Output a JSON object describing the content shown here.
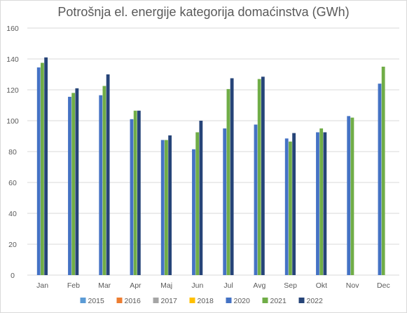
{
  "chart_data": {
    "type": "bar",
    "title": "Potrošnja el. energije kategorija domaćinstva (GWh)",
    "xlabel": "",
    "ylabel": "",
    "ylim": [
      0,
      160
    ],
    "yticks": [
      0,
      20,
      40,
      60,
      80,
      100,
      120,
      140,
      160
    ],
    "grid": true,
    "legend_position": "bottom",
    "categories": [
      "Jan",
      "Feb",
      "Mar",
      "Apr",
      "Maj",
      "Jun",
      "Jul",
      "Avg",
      "Sep",
      "Okt",
      "Nov",
      "Dec"
    ],
    "series": [
      {
        "name": "2015",
        "color": "#5b9bd5",
        "values": [
          null,
          null,
          null,
          null,
          null,
          null,
          null,
          null,
          null,
          null,
          null,
          null
        ]
      },
      {
        "name": "2016",
        "color": "#ed7d31",
        "values": [
          null,
          null,
          null,
          null,
          null,
          null,
          null,
          null,
          null,
          null,
          null,
          null
        ]
      },
      {
        "name": "2017",
        "color": "#a5a5a5",
        "values": [
          null,
          null,
          null,
          null,
          null,
          null,
          null,
          null,
          null,
          null,
          null,
          null
        ]
      },
      {
        "name": "2018",
        "color": "#ffc000",
        "values": [
          null,
          null,
          null,
          null,
          null,
          null,
          null,
          null,
          null,
          null,
          null,
          null
        ]
      },
      {
        "name": "2020",
        "color": "#4472c4",
        "values": [
          134.5,
          115.5,
          116.5,
          101,
          87.5,
          81.5,
          95,
          97.5,
          88.5,
          92.5,
          103,
          124
        ]
      },
      {
        "name": "2021",
        "color": "#70ad47",
        "values": [
          137.5,
          118,
          122.5,
          106.5,
          87.5,
          92.5,
          120.5,
          127,
          86.5,
          95,
          102,
          135
        ]
      },
      {
        "name": "2022",
        "color": "#264478",
        "values": [
          141,
          121,
          130,
          106.5,
          90.5,
          100,
          127.5,
          128.5,
          92,
          92.5,
          null,
          null
        ]
      }
    ]
  }
}
